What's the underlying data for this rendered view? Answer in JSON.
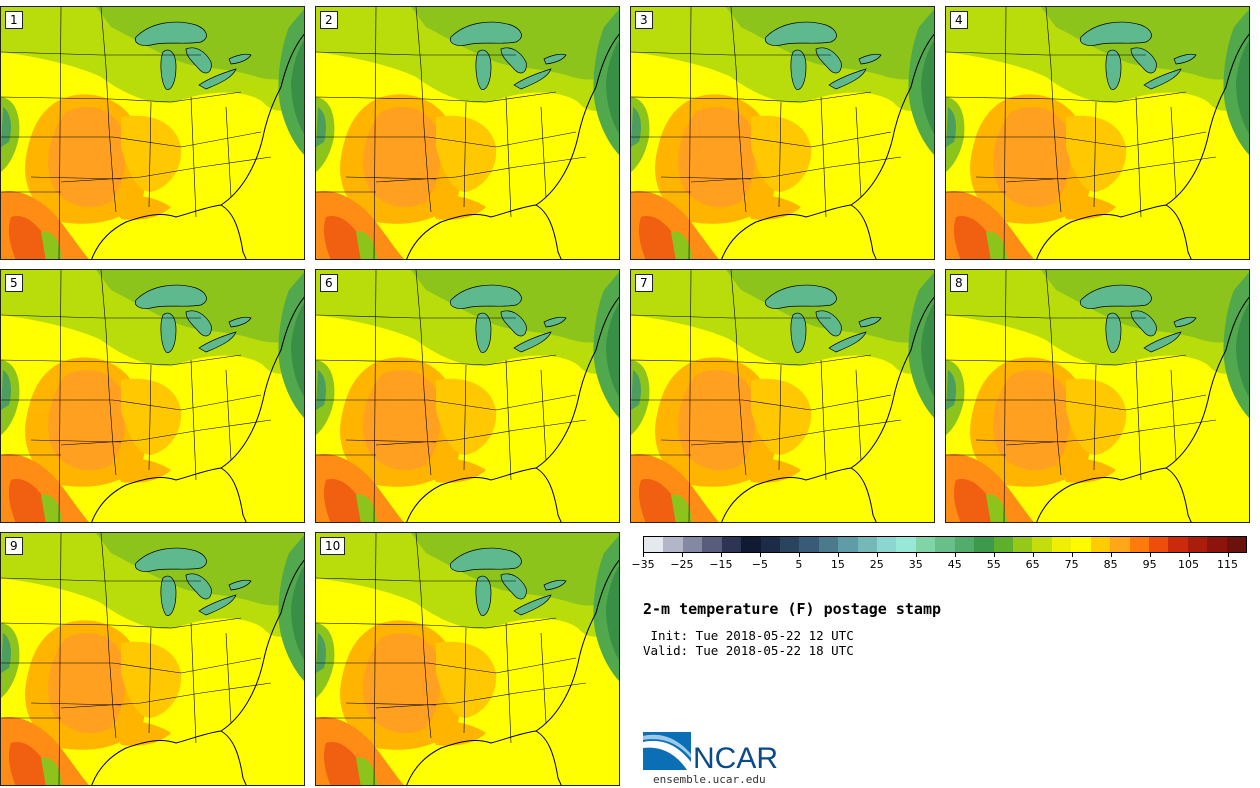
{
  "panels": [
    {
      "label": "1"
    },
    {
      "label": "2"
    },
    {
      "label": "3"
    },
    {
      "label": "4"
    },
    {
      "label": "5"
    },
    {
      "label": "6"
    },
    {
      "label": "7"
    },
    {
      "label": "8"
    },
    {
      "label": "9"
    },
    {
      "label": "10"
    }
  ],
  "colorbar": {
    "colors": [
      "#e5e8ec",
      "#b3b5c9",
      "#8588a2",
      "#575d7a",
      "#2e3453",
      "#111a33",
      "#1b2b48",
      "#2a4460",
      "#395b77",
      "#4a7a8c",
      "#5f9ca8",
      "#74b9b8",
      "#8bd6d0",
      "#98e8d8",
      "#80d4a8",
      "#68bf8a",
      "#52ad6c",
      "#3d9a4c",
      "#5eaf2c",
      "#96c81a",
      "#c3de0c",
      "#eeef05",
      "#fffa00",
      "#ffcc00",
      "#ffa619",
      "#ff7b0c",
      "#ef4d0c",
      "#cc2a0c",
      "#aa1c0c",
      "#8c140d",
      "#6c120d"
    ],
    "ticks": [
      "−35",
      "−25",
      "−15",
      "−5",
      "5",
      "15",
      "25",
      "35",
      "45",
      "55",
      "65",
      "75",
      "85",
      "95",
      "105",
      "115"
    ]
  },
  "title": "2-m temperature (F) postage stamp",
  "init_text": " Init: Tue 2018-05-22 12 UTC",
  "valid_text": "Valid: Tue 2018-05-22 18 UTC",
  "logo": {
    "name": "NCAR",
    "url": "ensemble.ucar.edu"
  }
}
